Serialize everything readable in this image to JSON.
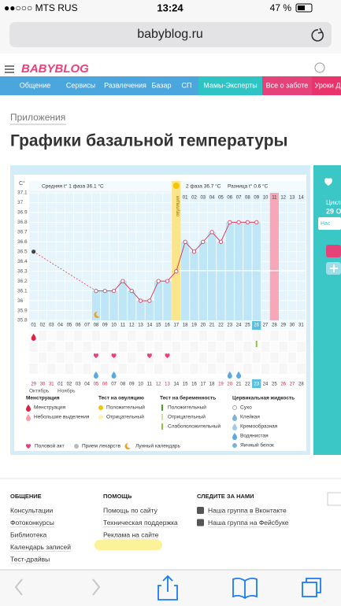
{
  "status": {
    "carrier": "●●○○○ MTS RUS",
    "time": "13:24",
    "battery": "47 %"
  },
  "url": "babyblog.ru",
  "logo": "BABYBLOG",
  "nav": [
    "Общение",
    "Сервисы",
    "Развлечения",
    "Базар",
    "СП",
    "Мамы-Эксперты",
    "Все о заботе",
    "Уроки Д"
  ],
  "breadcrumb": "Приложения",
  "title": "Графики базальной температуры",
  "chart_data": {
    "type": "line",
    "y_unit": "C°",
    "phase1": "Средняя t° 1 фаза 36.1 °C",
    "ovulation": "овуляция",
    "phase2": "2 фаза 36.7 °C",
    "difference": "Разница t° 0.6 °C",
    "categories": [
      "01",
      "02",
      "03",
      "04",
      "05",
      "06",
      "07",
      "08",
      "09",
      "10",
      "11",
      "12",
      "13",
      "14",
      "15",
      "16",
      "17",
      "18",
      "19",
      "20",
      "21",
      "22",
      "23",
      "24",
      "25",
      "26",
      "27",
      "28",
      "29",
      "30",
      "31"
    ],
    "phase2_days": [
      "01",
      "02",
      "03",
      "04",
      "05",
      "06",
      "07",
      "08",
      "09",
      "10",
      "11",
      "12",
      "13",
      "14"
    ],
    "values": [
      36.5,
      null,
      null,
      null,
      null,
      null,
      null,
      36.1,
      36.1,
      36.1,
      36.2,
      36.1,
      36.0,
      36.0,
      36.2,
      36.2,
      36.3,
      36.6,
      36.5,
      36.6,
      36.7,
      36.6,
      36.8,
      36.8,
      36.8,
      36.8,
      null,
      null,
      null,
      null,
      null
    ],
    "color": "#d9415f",
    "ylim": [
      35.8,
      37.1
    ],
    "yticks": [
      37.1,
      37,
      36.9,
      36.8,
      36.7,
      36.6,
      36.5,
      36.4,
      36.3,
      36.2,
      36.1,
      36,
      35.9,
      35.8
    ],
    "grid": true,
    "dates": [
      "29",
      "30",
      "31",
      "01",
      "02",
      "03",
      "04",
      "05",
      "06",
      "07",
      "08",
      "09",
      "10",
      "11",
      "12",
      "13",
      "14",
      "15",
      "16",
      "17",
      "18",
      "19",
      "20",
      "21",
      "22",
      "23",
      "24",
      "25",
      "26",
      "27",
      "28"
    ],
    "red_dates": [
      0,
      1,
      2,
      7,
      8,
      14,
      15,
      21,
      22,
      28,
      29
    ],
    "months": [
      "Октябрь",
      "Ноябрь"
    ]
  },
  "legend": [
    {
      "title": "Менструация",
      "items": [
        "Менструация",
        "Небольшие выделения"
      ]
    },
    {
      "title": "Тест на овуляцию",
      "items": [
        "Положительный",
        "Отрицательный"
      ]
    },
    {
      "title": "Тест на беременность",
      "items": [
        "Положительный",
        "Отрицательный",
        "Слабоположительный"
      ]
    },
    {
      "title": "Цервикальная жидкость",
      "items": [
        "Сухо",
        "Клейкая",
        "Кремообразная",
        "Водянистая",
        "Яичный белок"
      ]
    }
  ],
  "legend_extra": [
    "Половой акт",
    "Прием лекарств",
    "Лунный календарь"
  ],
  "side": {
    "cycle": "Цикл",
    "day": "29 O",
    "button": "Нас"
  },
  "footer": [
    {
      "title": "ОБЩЕНИЕ",
      "items": [
        "Консультации",
        "Фотоконкурсы",
        "Библиотека",
        "Календарь записей",
        "Тест-драйвы"
      ]
    },
    {
      "title": "ПОМОЩЬ",
      "items": [
        "Помощь по сайту",
        "Техническая поддержка",
        "Реклама на сайте"
      ]
    },
    {
      "title": "СЛЕДИТЕ ЗА НАМИ",
      "items": [
        "Наша группа в Вконтакте",
        "Наша группа на Фейсбуке"
      ]
    }
  ]
}
